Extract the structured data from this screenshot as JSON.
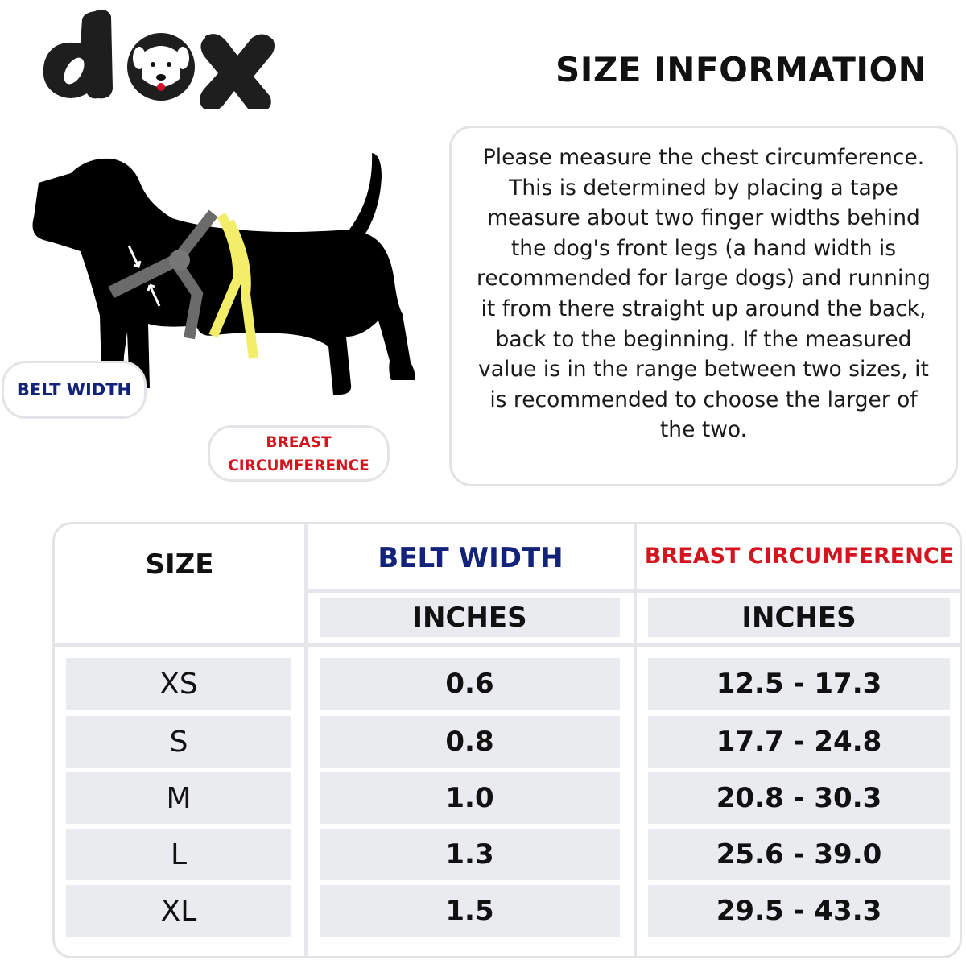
{
  "brand": {
    "logo_text": "dox"
  },
  "title": "SIZE INFORMATION",
  "instructions": "Please measure the chest circumference. This is determined by placing a tape measure about two finger widths behind the dog's front legs (a hand width is recommended for large dogs) and running it from there straight up around the back, back to the beginning. If the measured value is in the range between two sizes, it is recommended to choose the larger of the two.",
  "diagram": {
    "belt_width_label": "BELT WIDTH",
    "breast_label_line1": "BREAST",
    "breast_label_line2": "CIRCUMFERENCE"
  },
  "colors": {
    "belt_width": "#13237a",
    "breast": "#d4141f",
    "tape": "#f2ee6a",
    "harness": "#6b6b6b"
  },
  "table": {
    "headers": {
      "size": "SIZE",
      "belt_width": "BELT WIDTH",
      "breast": "BREAST CIRCUMFERENCE",
      "belt_unit": "INCHES",
      "breast_unit": "INCHES"
    },
    "rows": [
      {
        "size": "XS",
        "belt": "0.6",
        "breast": "12.5 - 17.3"
      },
      {
        "size": "S",
        "belt": "0.8",
        "breast": "17.7 - 24.8"
      },
      {
        "size": "M",
        "belt": "1.0",
        "breast": "20.8 - 30.3"
      },
      {
        "size": "L",
        "belt": "1.3",
        "breast": "25.6 - 39.0"
      },
      {
        "size": "XL",
        "belt": "1.5",
        "breast": "29.5 - 43.3"
      }
    ]
  }
}
